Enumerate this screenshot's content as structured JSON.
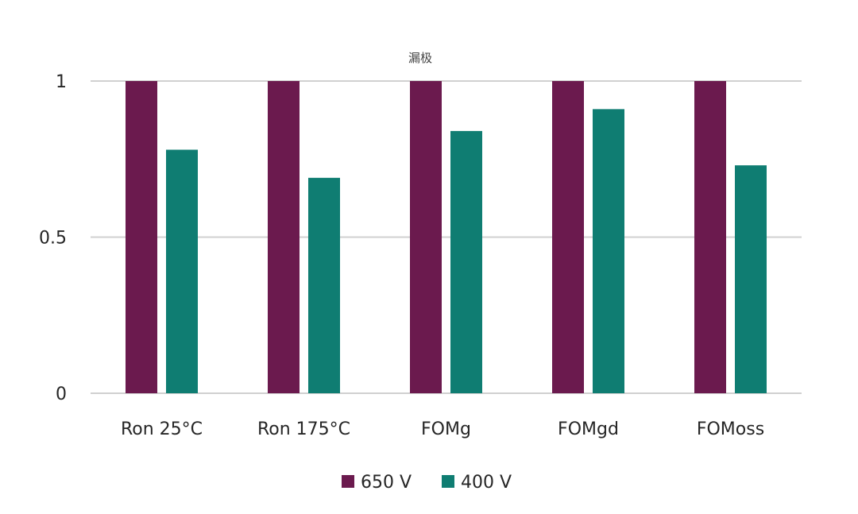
{
  "chart_data": {
    "type": "bar",
    "title": "漏极",
    "categories": [
      "Ron 25°C",
      "Ron 175°C",
      "FOMg",
      "FOMgd",
      "FOMoss"
    ],
    "series": [
      {
        "name": "650 V",
        "values": [
          1,
          1,
          1,
          1,
          1
        ],
        "color": "#6b1a4e"
      },
      {
        "name": "400 V",
        "values": [
          0.78,
          0.69,
          0.84,
          0.91,
          0.73
        ],
        "color": "#0f7d72"
      }
    ],
    "yticks": [
      "0",
      "0.5",
      "1"
    ],
    "ylim": [
      0,
      1
    ],
    "grid": true,
    "legend_position": "bottom"
  }
}
